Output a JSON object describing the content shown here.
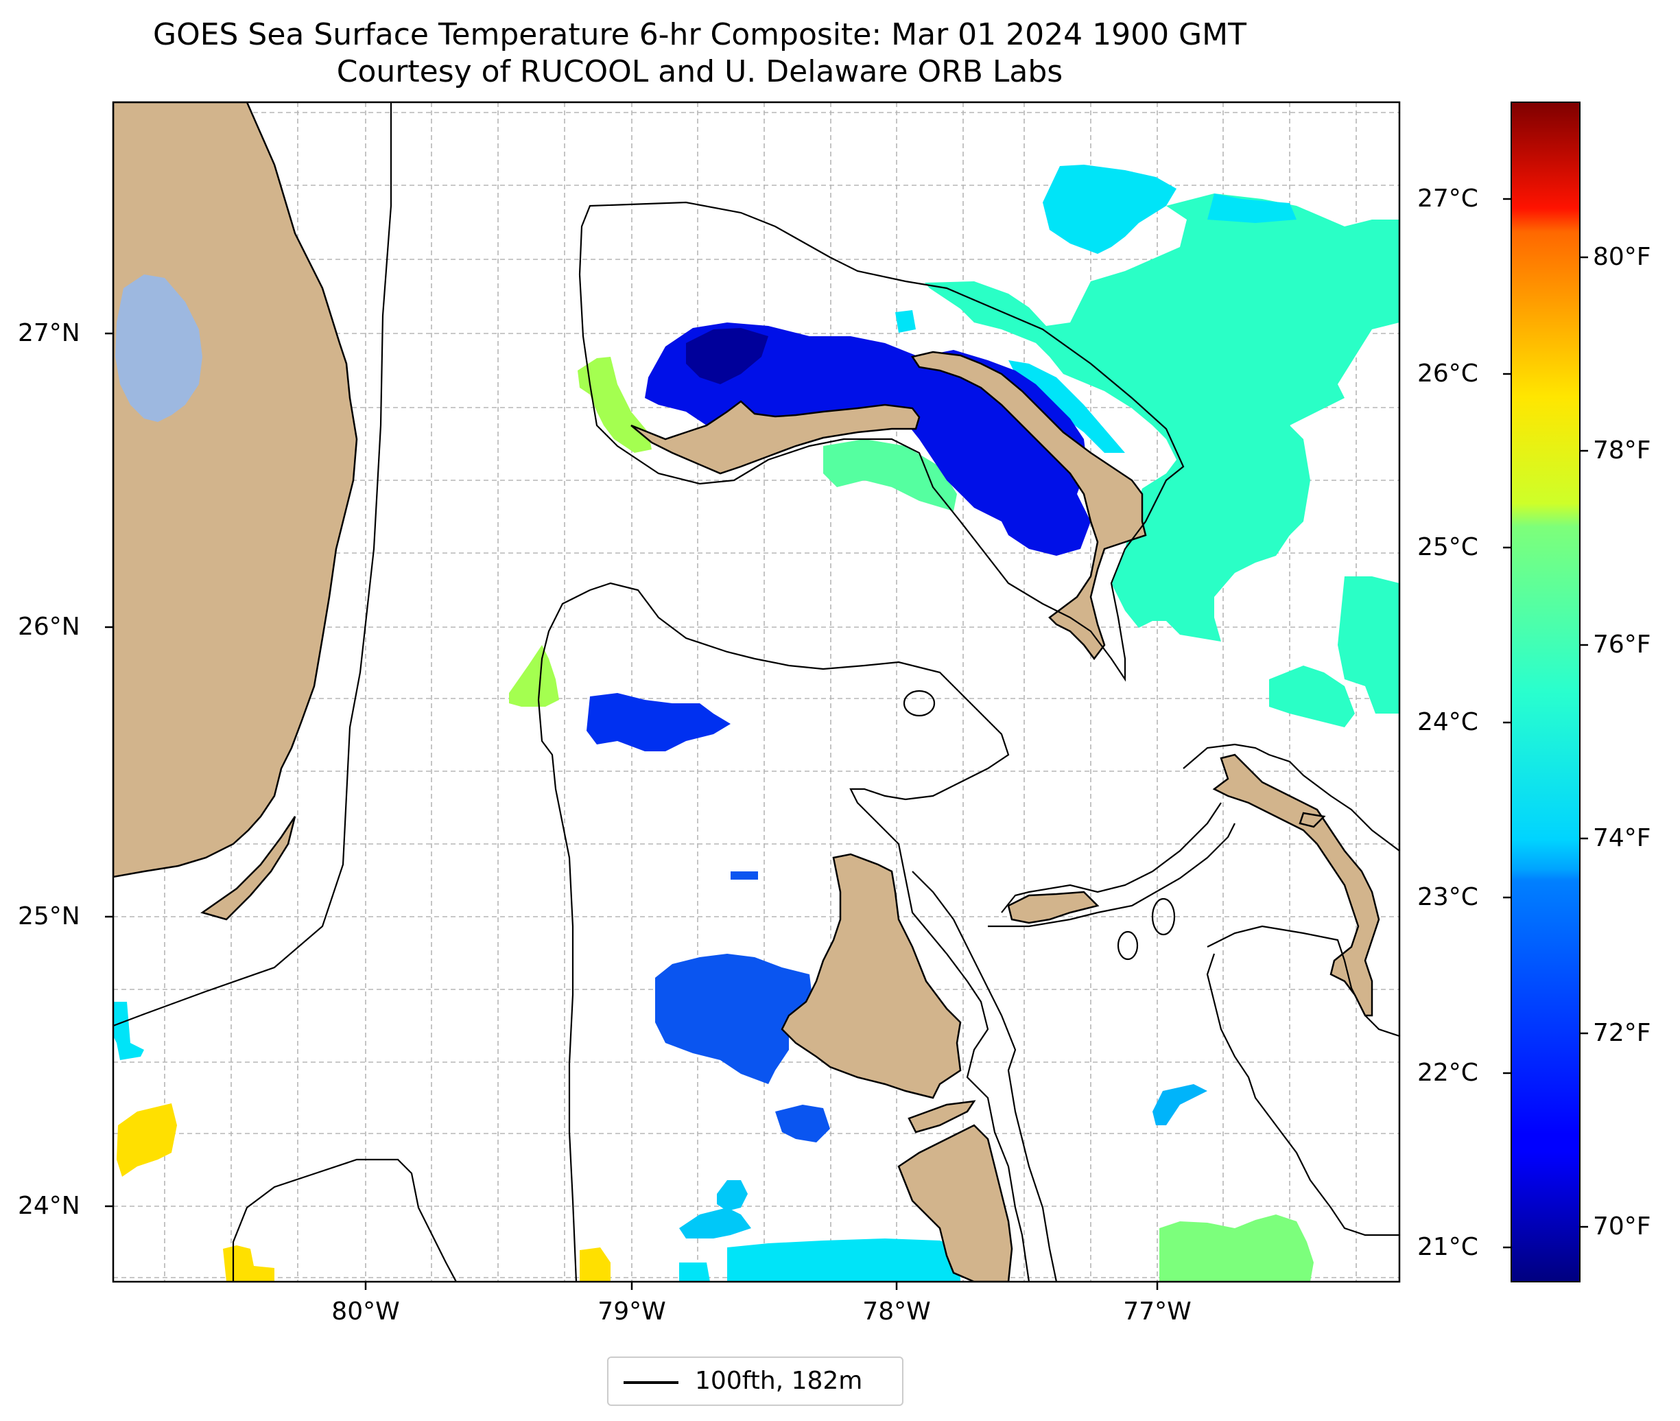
{
  "title": {
    "line1": "GOES Sea Surface Temperature 6-hr Composite: Mar 01 2024 1900 GMT",
    "line2": "Courtesy of RUCOOL and U. Delaware ORB Labs"
  },
  "map": {
    "lon_range": [
      -80.95,
      -76.1
    ],
    "lat_range": [
      23.75,
      27.8
    ],
    "lon_ticks": [
      {
        "value": -80,
        "label": "80°W"
      },
      {
        "value": -79,
        "label": "79°W"
      },
      {
        "value": -78,
        "label": "78°W"
      },
      {
        "value": -77,
        "label": "77°W"
      }
    ],
    "lat_ticks": [
      {
        "value": 27,
        "label": "27°N"
      },
      {
        "value": 26,
        "label": "26°N"
      },
      {
        "value": 25,
        "label": "25°N"
      },
      {
        "value": 24,
        "label": "24°N"
      }
    ],
    "colors": {
      "land": "#d2b48c",
      "lake": "#9db8e0",
      "grid": "#b0b0b0",
      "contour": "#000000"
    }
  },
  "sst_patches": [
    {
      "name": "northeast-warm-water",
      "temp_c": 24.0,
      "color": "#2affc6"
    },
    {
      "name": "northeast-cyan-edge",
      "temp_c": 23.2,
      "color": "#00e4f8"
    },
    {
      "name": "little-bahama-bank-cold",
      "temp_c": 21.5,
      "color": "#0010e8"
    },
    {
      "name": "little-bahama-bank-core",
      "temp_c": 21.2,
      "color": "#00009a"
    },
    {
      "name": "west-end-warm",
      "temp_c": 25.3,
      "color": "#a4ff50"
    },
    {
      "name": "bimini-warm",
      "temp_c": 25.3,
      "color": "#a4ff50"
    },
    {
      "name": "bimini-east-cold",
      "temp_c": 21.8,
      "color": "#0030f0"
    },
    {
      "name": "andros-west-cold",
      "temp_c": 22.0,
      "color": "#0a55f0"
    },
    {
      "name": "tongue-of-ocean-south",
      "temp_c": 23.3,
      "color": "#00c8f8"
    },
    {
      "name": "florida-keys-warm",
      "temp_c": 25.9,
      "color": "#ffe000"
    },
    {
      "name": "southeast-warm",
      "temp_c": 24.8,
      "color": "#7cff7c"
    }
  ],
  "colorbar": {
    "celsius_range": [
      20.8,
      27.5
    ],
    "celsius_ticks": [
      {
        "value": 21,
        "label": "21°C"
      },
      {
        "value": 22,
        "label": "22°C"
      },
      {
        "value": 23,
        "label": "23°C"
      },
      {
        "value": 24,
        "label": "24°C"
      },
      {
        "value": 25,
        "label": "25°C"
      },
      {
        "value": 26,
        "label": "26°C"
      },
      {
        "value": 27,
        "label": "27°C"
      }
    ],
    "fahrenheit_ticks": [
      {
        "value": 70,
        "label": "70°F"
      },
      {
        "value": 72,
        "label": "72°F"
      },
      {
        "value": 74,
        "label": "74°F"
      },
      {
        "value": 76,
        "label": "76°F"
      },
      {
        "value": 78,
        "label": "78°F"
      },
      {
        "value": 80,
        "label": "80°F"
      }
    ],
    "colormap": "jet"
  },
  "legend": {
    "label": "100fth, 182m"
  }
}
